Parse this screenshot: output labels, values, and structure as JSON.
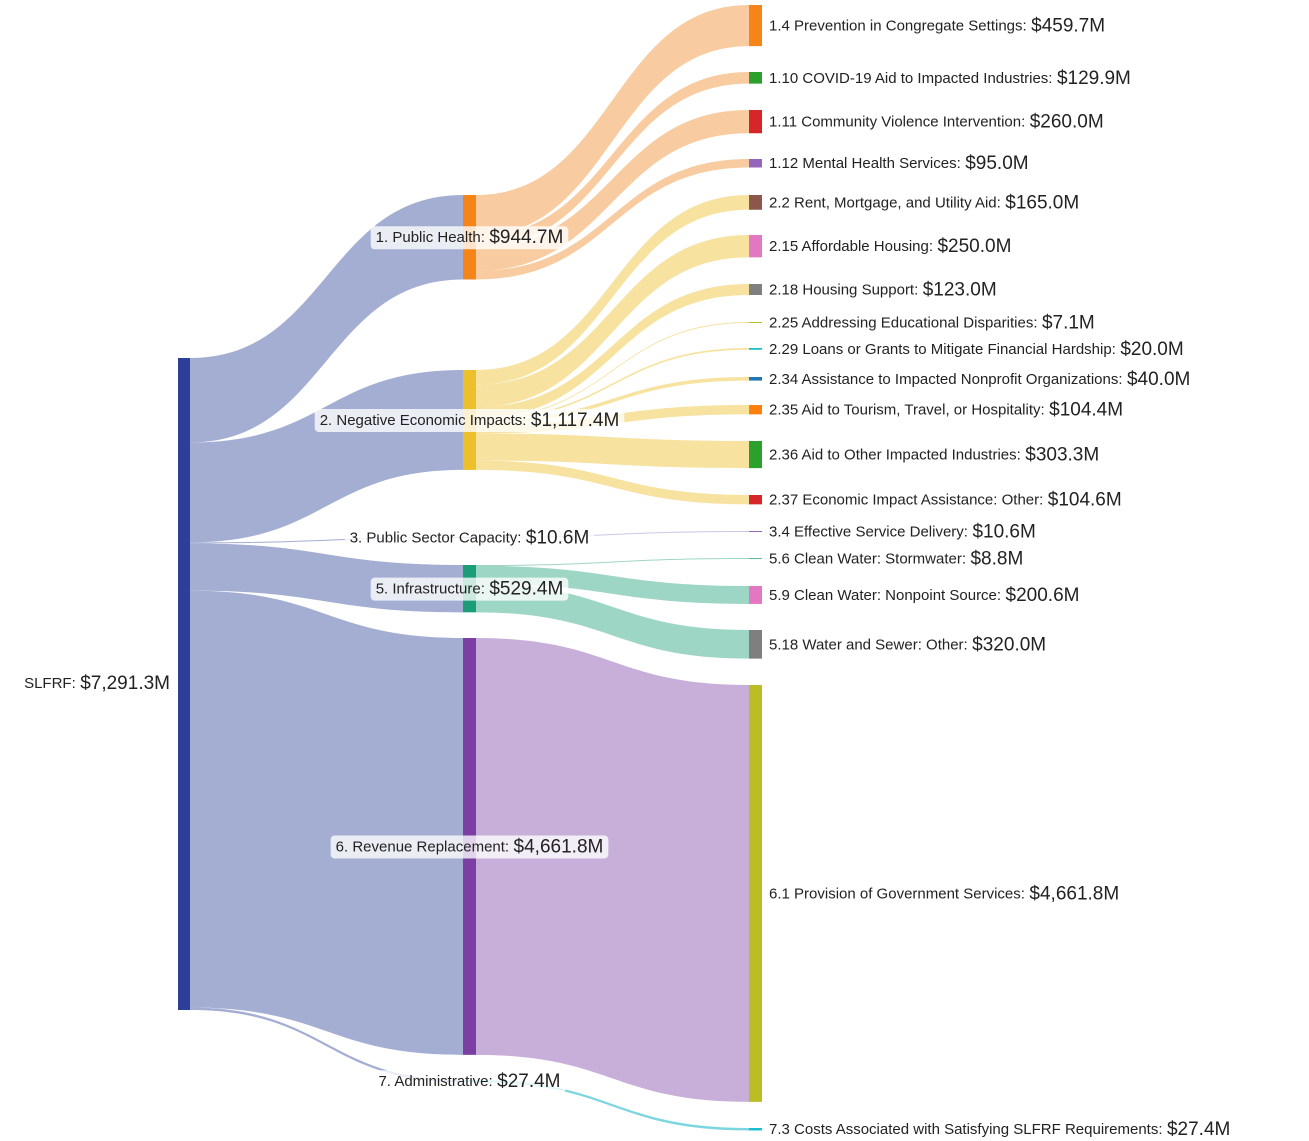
{
  "chart_data": {
    "type": "sankey",
    "root": {
      "name": "SLFRF:",
      "value": 7291.3,
      "value_label": "$7,291.3M",
      "color": "#2e3f99",
      "link_color": "#9faad1"
    },
    "groups": [
      {
        "name": "1. Public Health:",
        "value": 944.7,
        "value_label": "$944.7M",
        "color": "#f58518",
        "link_color": "#f7c796",
        "children": [
          {
            "name": "1.4 Prevention in Congregate Settings:",
            "value": 459.7,
            "value_label": "$459.7M",
            "color": "#f58518"
          },
          {
            "name": "1.10 COVID-19 Aid to Impacted Industries:",
            "value": 129.9,
            "value_label": "$129.9M",
            "color": "#2ca02c"
          },
          {
            "name": "1.11 Community Violence Intervention:",
            "value": 260.0,
            "value_label": "$260.0M",
            "color": "#d62728"
          },
          {
            "name": "1.12 Mental Health Services:",
            "value": 95.0,
            "value_label": "$95.0M",
            "color": "#9467bd"
          }
        ]
      },
      {
        "name": "2. Negative Economic Impacts:",
        "value": 1117.4,
        "value_label": "$1,117.4M",
        "color": "#ecbf2b",
        "link_color": "#f6df96",
        "children": [
          {
            "name": "2.2 Rent, Mortgage, and Utility Aid:",
            "value": 165.0,
            "value_label": "$165.0M",
            "color": "#8c564b"
          },
          {
            "name": "2.15 Affordable Housing:",
            "value": 250.0,
            "value_label": "$250.0M",
            "color": "#e377c2"
          },
          {
            "name": "2.18 Housing Support:",
            "value": 123.0,
            "value_label": "$123.0M",
            "color": "#7f7f7f"
          },
          {
            "name": "2.25 Addressing Educational Disparities:",
            "value": 7.1,
            "value_label": "$7.1M",
            "color": "#bcbd22"
          },
          {
            "name": "2.29 Loans or Grants to Mitigate Financial Hardship:",
            "value": 20.0,
            "value_label": "$20.0M",
            "color": "#17becf"
          },
          {
            "name": "2.34 Assistance to Impacted Nonprofit Organizations:",
            "value": 40.0,
            "value_label": "$40.0M",
            "color": "#1f77b4"
          },
          {
            "name": "2.35 Aid to Tourism, Travel, or Hospitality:",
            "value": 104.4,
            "value_label": "$104.4M",
            "color": "#ff7f0e"
          },
          {
            "name": "2.36 Aid to Other Impacted Industries:",
            "value": 303.3,
            "value_label": "$303.3M",
            "color": "#2ca02c"
          },
          {
            "name": "2.37 Economic Impact Assistance: Other:",
            "value": 104.6,
            "value_label": "$104.6M",
            "color": "#d62728"
          }
        ]
      },
      {
        "name": "3. Public Sector Capacity:",
        "value": 10.6,
        "value_label": "$10.6M",
        "color": "#9b8fcf",
        "link_color": "#c8c0e4",
        "children": [
          {
            "name": "3.4 Effective Service Delivery:",
            "value": 10.6,
            "value_label": "$10.6M",
            "color": "#9467bd"
          }
        ]
      },
      {
        "name": "5. Infrastructure:",
        "value": 529.4,
        "value_label": "$529.4M",
        "color": "#1b9e77",
        "link_color": "#93d2bf",
        "children": [
          {
            "name": "5.6 Clean Water: Stormwater:",
            "value": 8.8,
            "value_label": "$8.8M",
            "color": "#5fb8a6"
          },
          {
            "name": "5.9 Clean Water: Nonpoint Source:",
            "value": 200.6,
            "value_label": "$200.6M",
            "color": "#e377c2"
          },
          {
            "name": "5.18 Water and Sewer: Other:",
            "value": 320.0,
            "value_label": "$320.0M",
            "color": "#7f7f7f"
          }
        ]
      },
      {
        "name": "6. Revenue Replacement:",
        "value": 4661.8,
        "value_label": "$4,661.8M",
        "color": "#7b3fa3",
        "link_color": "#c1a6d6",
        "children": [
          {
            "name": "6.1 Provision of Government Services:",
            "value": 4661.8,
            "value_label": "$4,661.8M",
            "color": "#bcbd22"
          }
        ]
      },
      {
        "name": "7. Administrative:",
        "value": 27.4,
        "value_label": "$27.4M",
        "color": "#5fc8d8",
        "link_color": "#6fd0dd",
        "children": [
          {
            "name": "7.3 Costs Associated with Satisfying SLFRF Requirements:",
            "value": 27.4,
            "value_label": "$27.4M",
            "color": "#17becf"
          }
        ]
      }
    ]
  }
}
